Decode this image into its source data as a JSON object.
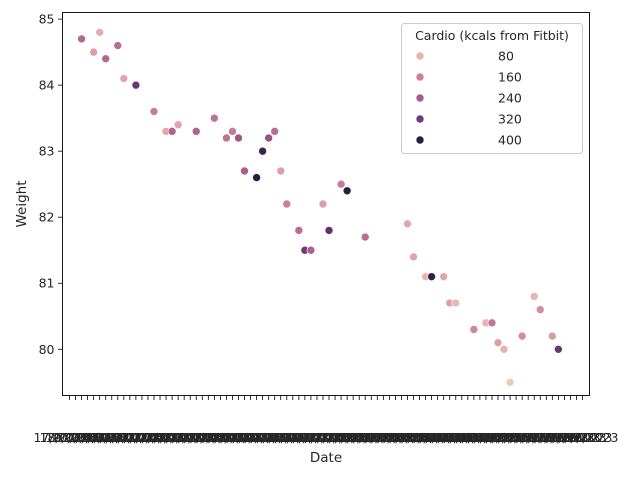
{
  "chart_data": {
    "type": "scatter",
    "xlabel": "Date",
    "ylabel": "Weight",
    "x_tick_text": "17/07/2023 18/07/2023 19/07/2023 20/07/2023 21/07/2023 22/07/2023 23/07/2023 24/07/2023 25/07/2023 26/07/2023 27/07/2023 28/07/2023 29/07/2023 30/07/2023 31/07/2023 01/08/2023 02/08/2023 03/08/2023 04/08/2023 05/08/2023 06/08/2023 07/08/2023 08/08/2023 09/08/2023 10/08/2023 11/08/2023 12/08/2023 13/08/2023 14/08/2023 15/08/2023 16/08/2023 17/08/2023 18/08/2023 19/08/2023 20/08/2023 21/08/2023 22/08/2023 23/08/2023 24/08/2023 25/08/2023 26/08/2023 27/08/2023 28/08/2023 29/08/2023 30/08/2023 31/08/2023 01/09/2023 02/09/2023 03/09/2023 04/09/2023 05/09/2023 06/09/2023 07/09/2023 08/09/2023 09/09/2023 10/09/2023 11/09/2023 12/09/2023 13/09/2023 14/09/2023 15/09/2023 16/09/2023 17/09/2023 18/09/2023 19/09/2023 20/09/2023 21/09/2023 22/09/2023 23/09/2023 24/09/2023 25/09/2023 26/09/2023 27/09/2023 28/09/2023 29/09/2023 30/09/2023 01/10/2023 02/10/2023 03/10/2023 04/10/2023 05/10/2023 06/10/2023 07/10/2023 08/10/2023 09/10/2023 10/10/2023",
    "y_ticks": [
      80,
      81,
      82,
      83,
      84,
      85
    ],
    "ylim": [
      79.3,
      85.1
    ],
    "grid": false,
    "legend": {
      "title": "Cardio (kcals from Fitbit)",
      "placement": "top-right",
      "entries": [
        {
          "label": "80",
          "color": "#e9b3b0"
        },
        {
          "label": "160",
          "color": "#cb7f97"
        },
        {
          "label": "240",
          "color": "#a65b8d"
        },
        {
          "label": "320",
          "color": "#6f3a7c"
        },
        {
          "label": "400",
          "color": "#2d1a3f"
        }
      ]
    },
    "hue_color_scale": [
      {
        "value": 30,
        "color": "#f0c7bb"
      },
      {
        "value": 80,
        "color": "#e9b3b0"
      },
      {
        "value": 160,
        "color": "#cb7f97"
      },
      {
        "value": 240,
        "color": "#a65b8d"
      },
      {
        "value": 320,
        "color": "#6f3a7c"
      },
      {
        "value": 400,
        "color": "#2d1a3f"
      }
    ],
    "points": [
      {
        "x": "19/07/2023",
        "y": 84.7,
        "cardio": 210
      },
      {
        "x": "21/07/2023",
        "y": 84.5,
        "cardio": 110
      },
      {
        "x": "22/07/2023",
        "y": 84.8,
        "cardio": 90
      },
      {
        "x": "23/07/2023",
        "y": 84.4,
        "cardio": 210
      },
      {
        "x": "25/07/2023",
        "y": 84.6,
        "cardio": 200
      },
      {
        "x": "26/07/2023",
        "y": 84.1,
        "cardio": 100
      },
      {
        "x": "28/07/2023",
        "y": 84.0,
        "cardio": 330
      },
      {
        "x": "31/07/2023",
        "y": 83.6,
        "cardio": 170
      },
      {
        "x": "02/08/2023",
        "y": 83.3,
        "cardio": 100
      },
      {
        "x": "03/08/2023",
        "y": 83.3,
        "cardio": 220
      },
      {
        "x": "04/08/2023",
        "y": 83.4,
        "cardio": 100
      },
      {
        "x": "07/08/2023",
        "y": 83.3,
        "cardio": 220
      },
      {
        "x": "10/08/2023",
        "y": 83.5,
        "cardio": 190
      },
      {
        "x": "12/08/2023",
        "y": 83.2,
        "cardio": 190
      },
      {
        "x": "13/08/2023",
        "y": 83.3,
        "cardio": 170
      },
      {
        "x": "14/08/2023",
        "y": 83.2,
        "cardio": 250
      },
      {
        "x": "15/08/2023",
        "y": 82.7,
        "cardio": 230
      },
      {
        "x": "17/08/2023",
        "y": 82.6,
        "cardio": 400
      },
      {
        "x": "18/08/2023",
        "y": 83.0,
        "cardio": 380
      },
      {
        "x": "19/08/2023",
        "y": 83.2,
        "cardio": 260
      },
      {
        "x": "20/08/2023",
        "y": 83.3,
        "cardio": 200
      },
      {
        "x": "21/08/2023",
        "y": 82.7,
        "cardio": 110
      },
      {
        "x": "22/08/2023",
        "y": 82.2,
        "cardio": 160
      },
      {
        "x": "24/08/2023",
        "y": 81.8,
        "cardio": 200
      },
      {
        "x": "25/08/2023",
        "y": 81.5,
        "cardio": 320
      },
      {
        "x": "26/08/2023",
        "y": 81.5,
        "cardio": 230
      },
      {
        "x": "28/08/2023",
        "y": 82.2,
        "cardio": 110
      },
      {
        "x": "29/08/2023",
        "y": 81.8,
        "cardio": 340
      },
      {
        "x": "31/08/2023",
        "y": 82.5,
        "cardio": 170
      },
      {
        "x": "01/09/2023",
        "y": 82.4,
        "cardio": 400
      },
      {
        "x": "04/09/2023",
        "y": 81.7,
        "cardio": 200
      },
      {
        "x": "11/09/2023",
        "y": 81.9,
        "cardio": 100
      },
      {
        "x": "12/09/2023",
        "y": 81.4,
        "cardio": 100
      },
      {
        "x": "14/09/2023",
        "y": 81.1,
        "cardio": 80
      },
      {
        "x": "15/09/2023",
        "y": 81.1,
        "cardio": 390
      },
      {
        "x": "17/09/2023",
        "y": 81.1,
        "cardio": 100
      },
      {
        "x": "18/09/2023",
        "y": 80.7,
        "cardio": 110
      },
      {
        "x": "19/09/2023",
        "y": 80.7,
        "cardio": 70
      },
      {
        "x": "22/09/2023",
        "y": 80.3,
        "cardio": 150
      },
      {
        "x": "24/09/2023",
        "y": 80.4,
        "cardio": 80
      },
      {
        "x": "25/09/2023",
        "y": 80.4,
        "cardio": 180
      },
      {
        "x": "26/09/2023",
        "y": 80.1,
        "cardio": 110
      },
      {
        "x": "27/09/2023",
        "y": 80.0,
        "cardio": 80
      },
      {
        "x": "28/09/2023",
        "y": 79.5,
        "cardio": 30
      },
      {
        "x": "30/09/2023",
        "y": 80.2,
        "cardio": 140
      },
      {
        "x": "02/10/2023",
        "y": 80.8,
        "cardio": 80
      },
      {
        "x": "03/10/2023",
        "y": 80.6,
        "cardio": 140
      },
      {
        "x": "05/10/2023",
        "y": 80.2,
        "cardio": 120
      },
      {
        "x": "06/10/2023",
        "y": 80.0,
        "cardio": 330
      }
    ]
  }
}
